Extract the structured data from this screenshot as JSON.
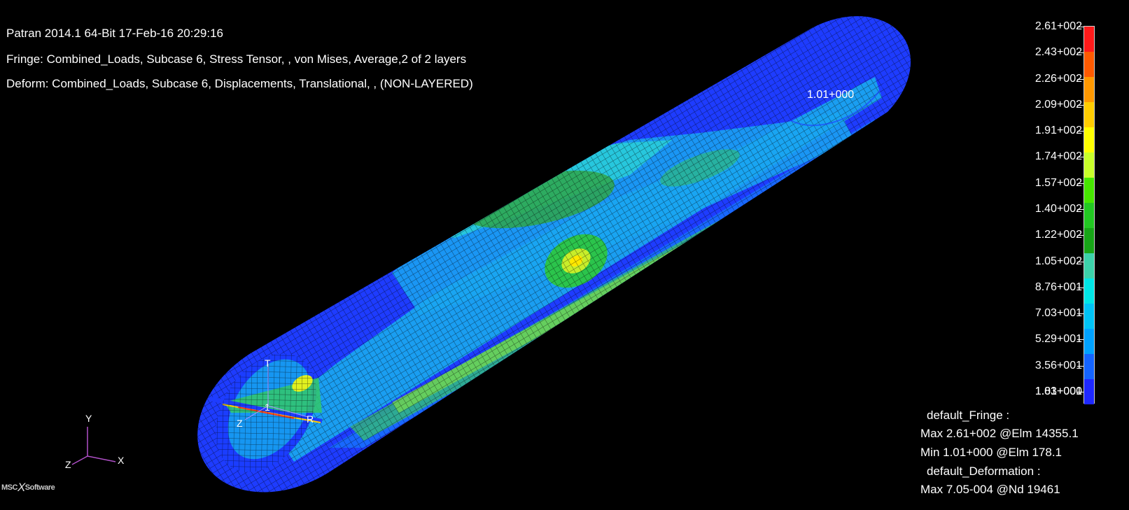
{
  "header": {
    "line1": "Patran 2014.1 64-Bit 17-Feb-16 20:29:16",
    "line2": "Fringe: Combined_Loads, Subcase 6, Stress Tensor, , von Mises, Average,2 of 2 layers",
    "line3": "Deform: Combined_Loads, Subcase 6, Displacements, Translational, , (NON-LAYERED)"
  },
  "model_label": "1.01+000",
  "legend": {
    "labels": [
      "2.61+002",
      "2.43+002",
      "2.26+002",
      "2.09+002",
      "1.91+002",
      "1.74+002",
      "1.57+002",
      "1.40+002",
      "1.22+002",
      "1.05+002",
      "8.76+001",
      "7.03+001",
      "5.29+001",
      "3.56+001",
      "1.83+001",
      "1.01+000"
    ],
    "colors": [
      "#ff1a1a",
      "#ff5a00",
      "#ff9800",
      "#ffcc00",
      "#ffff00",
      "#c8ff2a",
      "#46e600",
      "#22c822",
      "#17a517",
      "#3cd2aa",
      "#00e6e6",
      "#00c3f5",
      "#00a2ff",
      "#1464ff",
      "#1e28ff"
    ]
  },
  "info": {
    "fringe_title": "default_Fringe :",
    "fringe_max": "Max 2.61+002 @Elm 14355.1",
    "fringe_min": "Min 1.01+000 @Elm 178.1",
    "deform_title": "default_Deformation :",
    "deform_max": "Max 7.05-004 @Nd 19461"
  },
  "triad": {
    "y": "Y",
    "x": "X",
    "z": "Z"
  },
  "local_axes": {
    "t": "T",
    "r": "R",
    "z": "Z",
    "one": "1"
  },
  "logo": {
    "left": "MSC",
    "right": "Software"
  }
}
